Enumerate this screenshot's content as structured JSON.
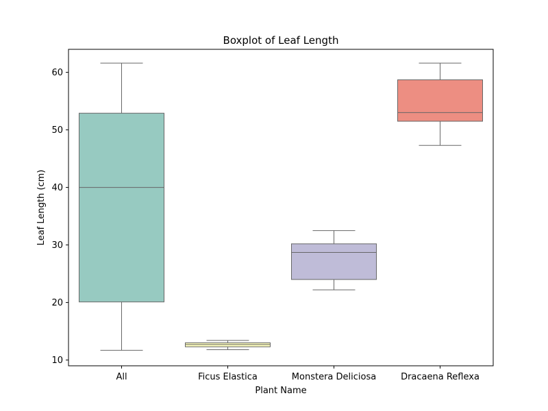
{
  "chart_data": {
    "type": "box",
    "title": "Boxplot of Leaf Length",
    "xlabel": "Plant Name",
    "ylabel": "Leaf Length (cm)",
    "ylim": [
      9.0,
      64.0
    ],
    "yticks": [
      10,
      20,
      30,
      40,
      50,
      60
    ],
    "grid": false,
    "categories": [
      "All",
      "Ficus Elastica",
      "Monstera Deliciosa",
      "Dracaena Reflexa"
    ],
    "boxes": [
      {
        "category": "All",
        "whisker_low": 11.7,
        "q1": 20.1,
        "median": 40.0,
        "q3": 52.9,
        "whisker_high": 61.6,
        "color": "#97cac1"
      },
      {
        "category": "Ficus Elastica",
        "whisker_low": 11.8,
        "q1": 12.3,
        "median": 12.7,
        "q3": 13.0,
        "whisker_high": 13.4,
        "color": "#fbfbbd"
      },
      {
        "category": "Monstera Deliciosa",
        "whisker_low": 22.2,
        "q1": 24.0,
        "median": 28.7,
        "q3": 30.2,
        "whisker_high": 32.5,
        "color": "#bfbcd8"
      },
      {
        "category": "Dracaena Reflexa",
        "whisker_low": 47.3,
        "q1": 51.5,
        "median": 53.0,
        "q3": 58.7,
        "whisker_high": 61.6,
        "color": "#ed8e82"
      }
    ],
    "line_color": "#666666"
  }
}
